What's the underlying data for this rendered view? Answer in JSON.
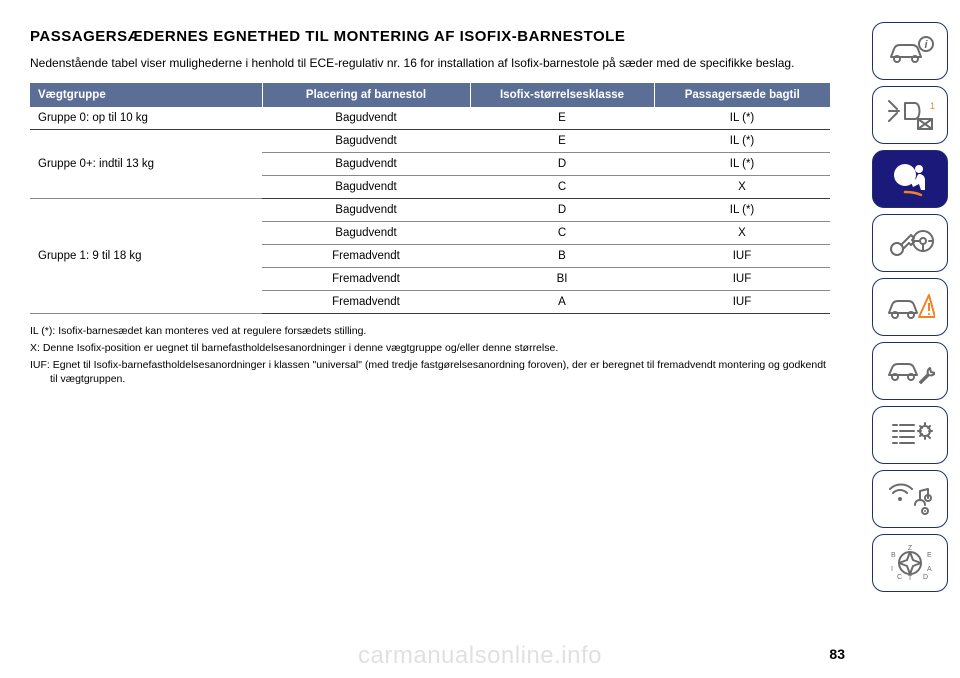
{
  "title": "PASSAGERSÆDERNES EGNETHED TIL MONTERING AF ISOFIX-BARNESTOLE",
  "intro": "Nedenstående tabel viser mulighederne i henhold til ECE-regulativ nr. 16 for installation af Isofix-barnestole på sæder med de specifikke beslag.",
  "table": {
    "headers": [
      "Vægtgruppe",
      "Placering af barnestol",
      "Isofix-størrelsesklasse",
      "Passagersæde bagtil"
    ],
    "header_bg": "#5a6e96",
    "header_fg": "#ffffff",
    "col_widths": [
      "29%",
      "26%",
      "23%",
      "22%"
    ],
    "groups": [
      {
        "label": "Gruppe 0: op til 10 kg",
        "rows": [
          {
            "placement": "Bagudvendt",
            "size": "E",
            "seat": "IL (*)"
          }
        ]
      },
      {
        "label": "Gruppe 0+: indtil 13 kg",
        "rows": [
          {
            "placement": "Bagudvendt",
            "size": "E",
            "seat": "IL (*)"
          },
          {
            "placement": "Bagudvendt",
            "size": "D",
            "seat": "IL (*)"
          },
          {
            "placement": "Bagudvendt",
            "size": "C",
            "seat": "X"
          }
        ]
      },
      {
        "label": "Gruppe 1: 9 til 18 kg",
        "rows": [
          {
            "placement": "Bagudvendt",
            "size": "D",
            "seat": "IL (*)"
          },
          {
            "placement": "Bagudvendt",
            "size": "C",
            "seat": "X"
          },
          {
            "placement": "Fremadvendt",
            "size": "B",
            "seat": "IUF"
          },
          {
            "placement": "Fremadvendt",
            "size": "BI",
            "seat": "IUF"
          },
          {
            "placement": "Fremadvendt",
            "size": "A",
            "seat": "IUF"
          }
        ]
      }
    ]
  },
  "notes": [
    "IL (*): Isofix-barnesædet kan monteres ved at regulere forsædets stilling.",
    "X: Denne Isofix-position er uegnet til barnefastholdelsesanordninger i denne vægtgruppe og/eller denne størrelse.",
    "IUF: Egnet til Isofix-barnefastholdelsesanordninger i klassen \"universal\" (med tredje fastgørelsesanordning foroven), der er beregnet til fremadvendt montering og godkendt til vægtgruppen."
  ],
  "page_number": "83",
  "watermark": "carmanualsonline.info",
  "sidebar": {
    "border_color": "#1f2f6b",
    "active_bg": "#1b1a7a",
    "inactive_stroke": "#6b6b6b",
    "active_stroke": "#ffffff",
    "warn_color": "#f58220",
    "active_index": 2,
    "items": [
      {
        "name": "car-info-icon"
      },
      {
        "name": "lights-icon"
      },
      {
        "name": "airbag-icon"
      },
      {
        "name": "key-wheel-icon"
      },
      {
        "name": "car-warning-icon"
      },
      {
        "name": "car-wrench-icon"
      },
      {
        "name": "list-gear-icon"
      },
      {
        "name": "media-icon"
      },
      {
        "name": "compass-icon"
      }
    ]
  }
}
